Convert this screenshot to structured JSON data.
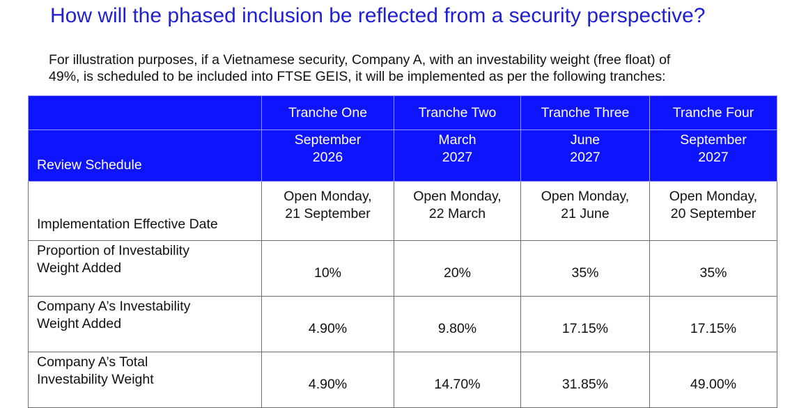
{
  "title": "How will the phased inclusion be reflected from a security perspective?",
  "intro": {
    "line1": "For illustration purposes, if a Vietnamese security, Company A, with an investability weight (free float) of",
    "line2": "49%, is scheduled to be included into FTSE GEIS, it will be implemented as per the following tranches:"
  },
  "table": {
    "header": [
      "Tranche One",
      "Tranche Two",
      "Tranche Three",
      "Tranche Four"
    ],
    "review_schedule": {
      "label": "Review Schedule",
      "values": [
        [
          "September",
          "2026"
        ],
        [
          "March",
          "2027"
        ],
        [
          "June",
          "2027"
        ],
        [
          "September",
          "2027"
        ]
      ]
    },
    "implementation": {
      "label": "Implementation Effective Date",
      "values": [
        [
          "Open Monday,",
          "21 September"
        ],
        [
          "Open Monday,",
          "22 March"
        ],
        [
          "Open Monday,",
          "21 June"
        ],
        [
          "Open Monday,",
          "20 September"
        ]
      ]
    },
    "proportion": {
      "label": [
        "Proportion of Investability",
        "Weight Added"
      ],
      "values": [
        "10%",
        "20%",
        "35%",
        "35%"
      ]
    },
    "company_weight_added": {
      "label": [
        "Company A’s Investability",
        "Weight Added"
      ],
      "values": [
        "4.90%",
        "9.80%",
        "17.15%",
        "17.15%"
      ]
    },
    "company_total": {
      "label": [
        "Company A’s Total",
        "Investability Weight"
      ],
      "values": [
        "4.90%",
        "14.70%",
        "31.85%",
        "49.00%"
      ]
    }
  },
  "colors": {
    "title": "#1f1fd6",
    "header_fill": "#0f14ff",
    "header_text": "#ffffff",
    "grid": "#6d6d6d"
  }
}
